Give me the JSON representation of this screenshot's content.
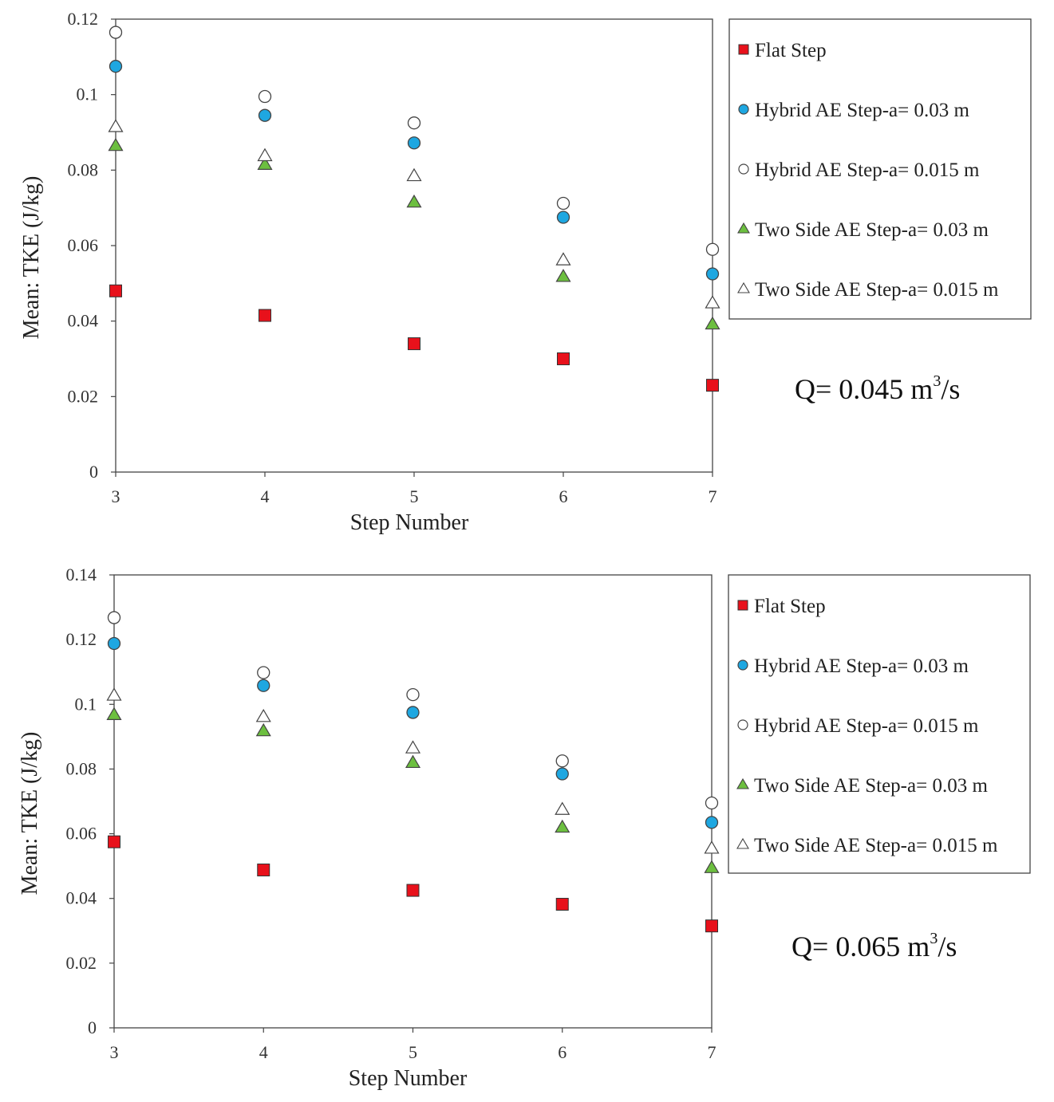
{
  "chart_data": [
    {
      "type": "scatter",
      "title": "",
      "xlabel": "Step Number",
      "ylabel": "Mean: TKE (J/kg)",
      "x": [
        3,
        4,
        5,
        6,
        7
      ],
      "xlim": [
        3,
        7
      ],
      "ylim": [
        0,
        0.12
      ],
      "yticks": [
        0,
        0.02,
        0.04,
        0.06,
        0.08,
        0.1,
        0.12
      ],
      "ytick_labels": [
        "0",
        "0.02",
        "0.04",
        "0.06",
        "0.08",
        "0.1",
        "0.12"
      ],
      "xtick_labels": [
        "3",
        "4",
        "5",
        "6",
        "7"
      ],
      "grid": false,
      "legend_position": "right",
      "annotation": {
        "prefix": "Q= 0.045 m",
        "sup": "3",
        "suffix": "/s"
      },
      "series": [
        {
          "name": "Flat Step",
          "marker": "square",
          "color": "#e8111b",
          "values": [
            0.048,
            0.0415,
            0.034,
            0.03,
            0.023
          ]
        },
        {
          "name": "Hybrid AE Step-a= 0.03 m",
          "marker": "circle",
          "color": "#1ea7e1",
          "values": [
            0.1075,
            0.0945,
            0.0872,
            0.0675,
            0.0525
          ]
        },
        {
          "name": "Hybrid AE Step-a= 0.015 m",
          "marker": "circle-open",
          "color": "#ffffff",
          "values": [
            0.1165,
            0.0995,
            0.0925,
            0.0712,
            0.059
          ]
        },
        {
          "name": "Two Side AE Step-a= 0.03 m",
          "marker": "triangle",
          "color": "#6cbf3f",
          "values": [
            0.0865,
            0.0815,
            0.0715,
            0.0518,
            0.0392
          ]
        },
        {
          "name": "Two Side AE Step-a= 0.015 m",
          "marker": "triangle-open",
          "color": "#ffffff",
          "values": [
            0.0915,
            0.0838,
            0.0785,
            0.0562,
            0.0448
          ]
        }
      ]
    },
    {
      "type": "scatter",
      "title": "",
      "xlabel": "Step Number",
      "ylabel": "Mean: TKE (J/kg)",
      "x": [
        3,
        4,
        5,
        6,
        7
      ],
      "xlim": [
        3,
        7
      ],
      "ylim": [
        0,
        0.14
      ],
      "yticks": [
        0,
        0.02,
        0.04,
        0.06,
        0.08,
        0.1,
        0.12,
        0.14
      ],
      "ytick_labels": [
        "0",
        "0.02",
        "0.04",
        "0.06",
        "0.08",
        "0.1",
        "0.12",
        "0.14"
      ],
      "xtick_labels": [
        "3",
        "4",
        "5",
        "6",
        "7"
      ],
      "grid": false,
      "legend_position": "right",
      "annotation": {
        "prefix": "Q= 0.065 m",
        "sup": "3",
        "suffix": "/s"
      },
      "series": [
        {
          "name": "Flat Step",
          "marker": "square",
          "color": "#e8111b",
          "values": [
            0.0575,
            0.0488,
            0.0425,
            0.0382,
            0.0315
          ]
        },
        {
          "name": "Hybrid AE Step-a= 0.03 m",
          "marker": "circle",
          "color": "#1ea7e1",
          "values": [
            0.1188,
            0.1058,
            0.0975,
            0.0785,
            0.0635
          ]
        },
        {
          "name": "Hybrid AE Step-a= 0.015 m",
          "marker": "circle-open",
          "color": "#ffffff",
          "values": [
            0.1268,
            0.1098,
            0.103,
            0.0825,
            0.0695
          ]
        },
        {
          "name": "Two Side AE Step-a= 0.03 m",
          "marker": "triangle",
          "color": "#6cbf3f",
          "values": [
            0.0968,
            0.0918,
            0.082,
            0.062,
            0.0495
          ]
        },
        {
          "name": "Two Side AE Step-a= 0.015 m",
          "marker": "triangle-open",
          "color": "#ffffff",
          "values": [
            0.1028,
            0.0962,
            0.0865,
            0.0675,
            0.0555
          ]
        }
      ]
    }
  ]
}
